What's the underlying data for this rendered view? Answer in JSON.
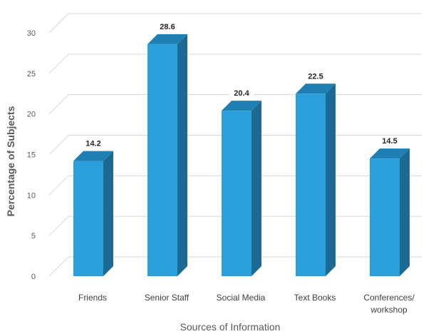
{
  "chart_data": {
    "type": "bar",
    "style": "3d-column",
    "categories": [
      "Friends",
      "Senior Staff",
      "Social Media",
      "Text Books",
      "Conferences/\nworkshop"
    ],
    "values": [
      14.2,
      28.6,
      20.4,
      22.5,
      14.5
    ],
    "data_labels": [
      "14.2",
      "28.6",
      "20.4",
      "22.5",
      "14.5"
    ],
    "xlabel": "Sources of Information",
    "ylabel": "Percentage of Subjects",
    "ylim": [
      0,
      30
    ],
    "yticks": [
      0,
      5,
      10,
      15,
      20,
      25,
      30
    ],
    "ytick_labels": [
      "0",
      "5",
      "10",
      "15",
      "20",
      "25",
      "30"
    ],
    "grid": true,
    "legend": "none",
    "colors": {
      "bar_front": "#2b9fdc",
      "bar_side": "#1c6a93",
      "bar_top": "#1f7fb3",
      "grid": "#d9d9d9",
      "text": "#595959"
    }
  }
}
